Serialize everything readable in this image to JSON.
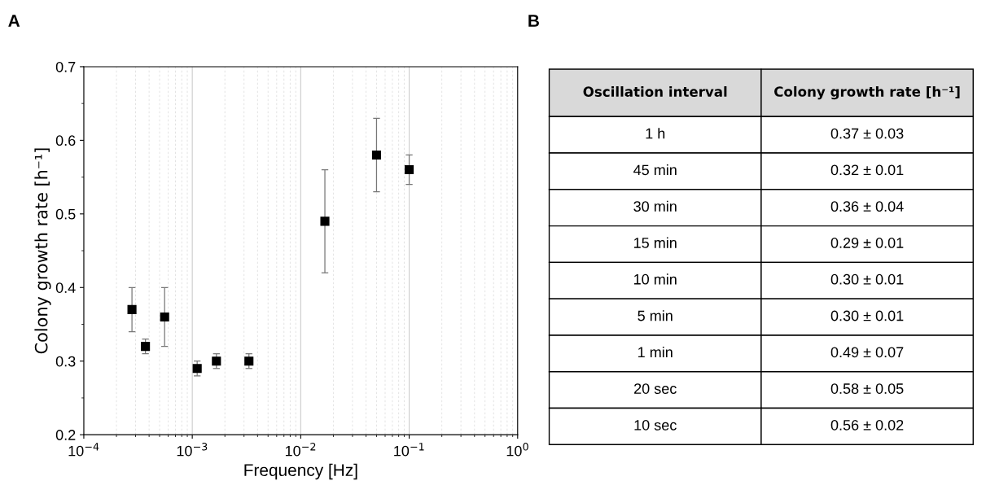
{
  "chart_data": [
    {
      "type": "scatter",
      "title": "A",
      "xlabel": "Frequency [Hz]",
      "ylabel": "Colony growth rate [h⁻¹]",
      "x": [
        0.000278,
        0.00037,
        0.000556,
        0.00111,
        0.00167,
        0.00333,
        0.0167,
        0.05,
        0.1
      ],
      "values": [
        0.37,
        0.32,
        0.36,
        0.29,
        0.3,
        0.3,
        0.49,
        0.58,
        0.56
      ],
      "errors": [
        0.03,
        0.01,
        0.04,
        0.01,
        0.01,
        0.01,
        0.07,
        0.05,
        0.02
      ],
      "color": "#000000",
      "marker": "square",
      "log": "x",
      "grid": "x",
      "xlim": [
        0.0001,
        1
      ],
      "xticks": [
        {
          "value": 0.0001,
          "label": "10$^{−4}$"
        },
        {
          "value": 0.001,
          "label": "10$^{−3}$"
        },
        {
          "value": 0.01,
          "label": "10$^{−2}$"
        },
        {
          "value": 0.1,
          "label": "10$^{−1}$"
        },
        {
          "value": 1,
          "label": "10$^{0}$"
        }
      ],
      "ylim": [
        0.2,
        0.7
      ],
      "yticks": [
        0.2,
        0.3,
        0.4,
        0.5,
        0.6,
        0.7
      ]
    },
    {
      "type": "other",
      "title": "B",
      "categories": [
        "Oscillation interval",
        "Colony growth rate [h⁻¹]"
      ],
      "cell_labels": [
        [
          "1 h",
          "0.37 ± 0.03"
        ],
        [
          "45 min",
          "0.32 ± 0.01"
        ],
        [
          "30 min",
          "0.36 ± 0.04"
        ],
        [
          "15 min",
          "0.29 ± 0.01"
        ],
        [
          "10 min",
          "0.30 ± 0.01"
        ],
        [
          "5 min",
          "0.30 ± 0.01"
        ],
        [
          "1 min",
          "0.49 ± 0.07"
        ],
        [
          "20 sec",
          "0.58 ± 0.05"
        ],
        [
          "10 sec",
          "0.56 ± 0.02"
        ]
      ]
    }
  ]
}
